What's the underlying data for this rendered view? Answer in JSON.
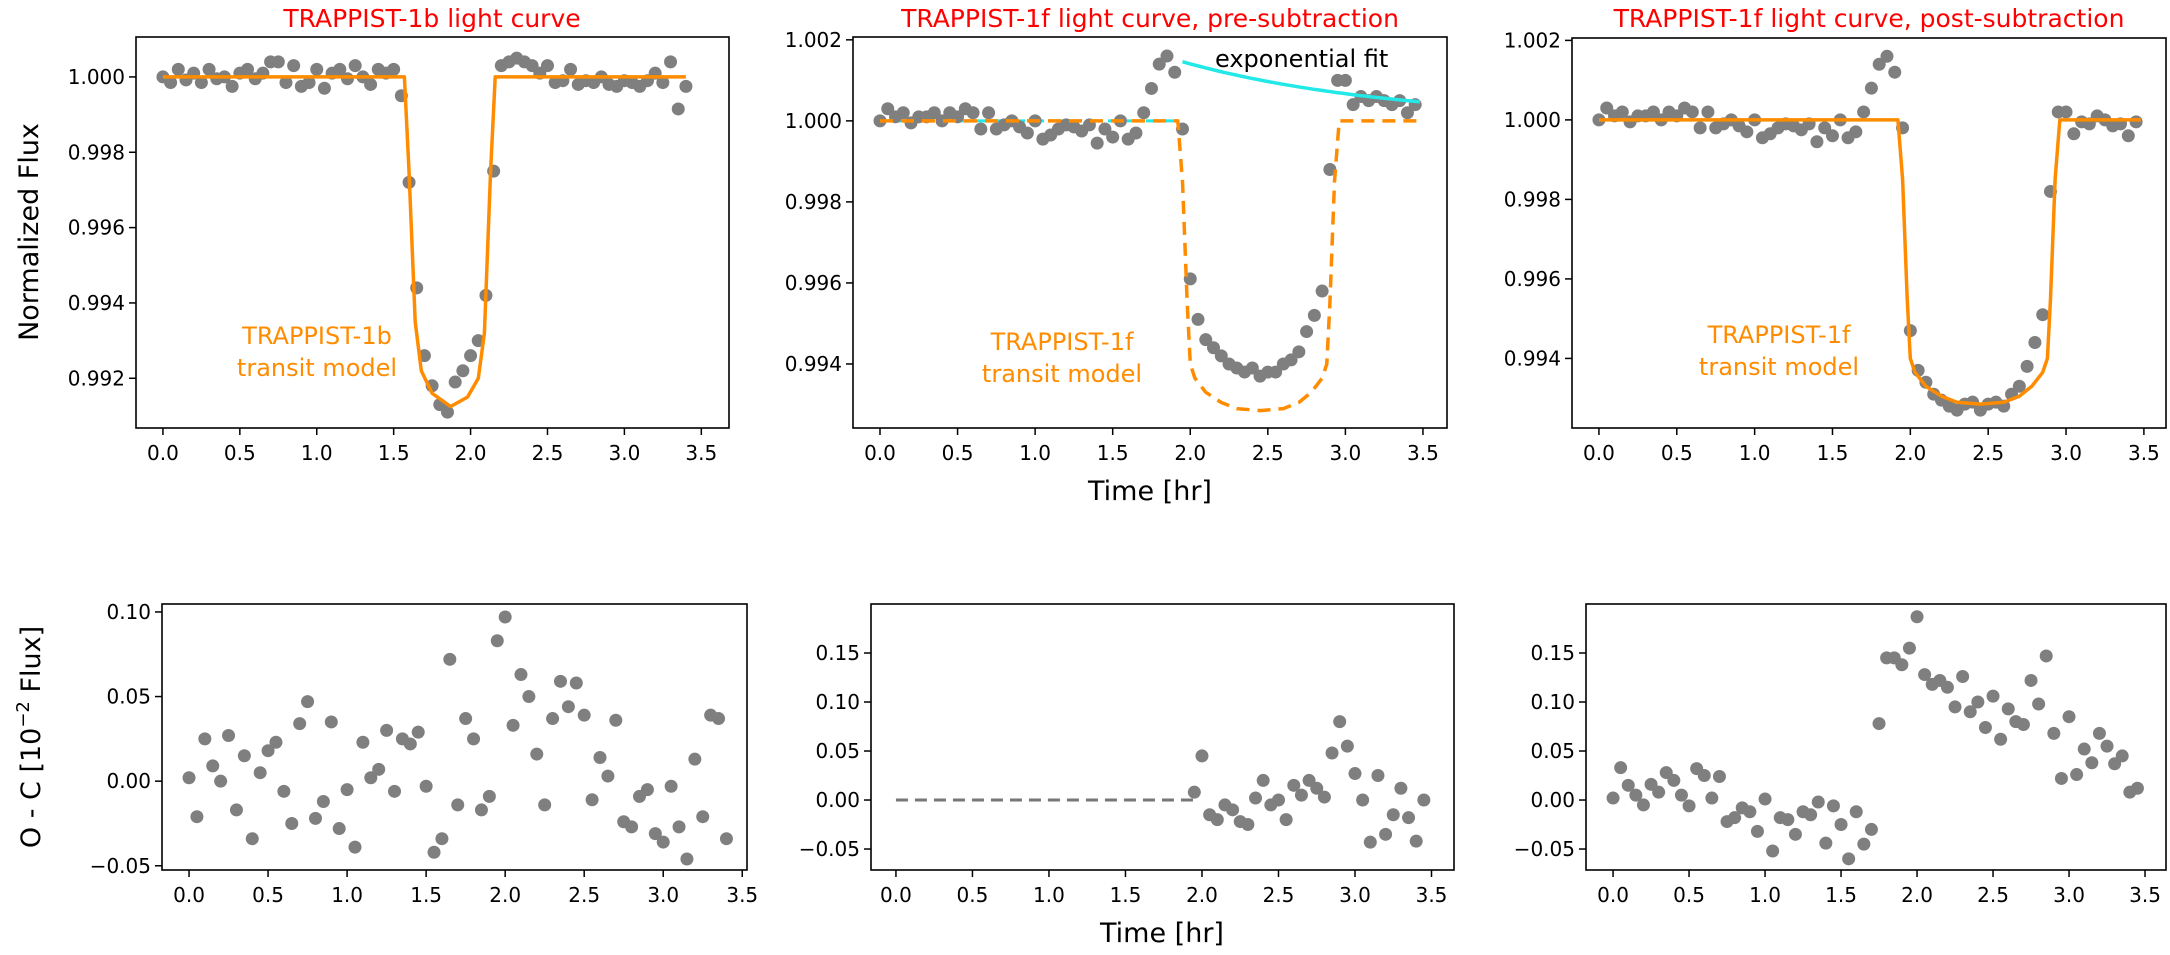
{
  "colors": {
    "points": "#7f7f7f",
    "model": "#ff8c00",
    "fit": "#22e8e8",
    "title": "#ff0000",
    "residual_zero": "#777777"
  },
  "labels": {
    "ylabel_top": "Normalized Flux",
    "ylabel_bottom_pre": "O - C [10",
    "ylabel_bottom_sup": "−2",
    "ylabel_bottom_post": " Flux]",
    "xlabel_top": "Time [hr]",
    "xlabel_bottom": "Time [hr]"
  },
  "chart_data": [
    {
      "id": "b_lc",
      "type": "scatter+line",
      "title": "TRAPPIST-1b light curve",
      "annotation": [
        "TRAPPIST-1b",
        "transit model"
      ],
      "xlim": [
        -0.175,
        3.68
      ],
      "ylim": [
        0.99068,
        1.00106
      ],
      "xticks": [
        0,
        0.5,
        1,
        1.5,
        2,
        2.5,
        3,
        3.5
      ],
      "xtick_labels": [
        "0.0",
        "0.5",
        "1.0",
        "1.5",
        "2.0",
        "2.5",
        "3.0",
        "3.5"
      ],
      "yticks": [
        0.992,
        0.994,
        0.996,
        0.998,
        1.0
      ],
      "ytick_labels": [
        "0.992",
        "0.994",
        "0.996",
        "0.998",
        "1.000"
      ],
      "t_start": 0,
      "t_step": 0.05,
      "y": [
        1.0,
        0.99985,
        1.0002,
        0.99992,
        1.0001,
        0.99985,
        1.0002,
        0.99995,
        1.0,
        0.99975,
        1.0001,
        1.0002,
        0.99995,
        1.0001,
        1.0004,
        1.0004,
        0.99985,
        1.0003,
        0.99975,
        0.99985,
        1.0002,
        0.9997,
        1.0001,
        1.0002,
        0.99995,
        1.0003,
        1.0,
        0.9998,
        1.0002,
        1.0001,
        1.0002,
        0.9995,
        0.9972,
        0.9944,
        0.9926,
        0.9918,
        0.9913,
        0.9911,
        0.9919,
        0.9922,
        0.9926,
        0.993,
        0.9942,
        0.9975,
        1.0003,
        1.0004,
        1.0005,
        1.0004,
        1.0003,
        1.0001,
        1.0003,
        0.99985,
        0.9999,
        1.0002,
        0.9998,
        0.9999,
        0.99985,
        1.0,
        0.9998,
        0.99975,
        0.9999,
        0.99985,
        0.99975,
        0.9999,
        1.0001,
        0.99985,
        1.0004,
        0.99915,
        0.99975
      ],
      "model": {
        "style": "solid",
        "points": [
          [
            0,
            1.0
          ],
          [
            1.57,
            1.0
          ],
          [
            1.6,
            0.9975
          ],
          [
            1.64,
            0.9935
          ],
          [
            1.68,
            0.9922
          ],
          [
            1.75,
            0.9916
          ],
          [
            1.87,
            0.99125
          ],
          [
            1.98,
            0.9915
          ],
          [
            2.05,
            0.992
          ],
          [
            2.09,
            0.9932
          ],
          [
            2.13,
            0.9975
          ],
          [
            2.16,
            1.0
          ],
          [
            3.4,
            1.0
          ]
        ]
      }
    },
    {
      "id": "f_pre",
      "type": "scatter+line",
      "title": "TRAPPIST-1f light curve, pre-subtraction",
      "annotation": [
        "TRAPPIST-1f",
        "transit model"
      ],
      "fit_label": "exponential fit",
      "xlim": [
        -0.174,
        3.655
      ],
      "ylim": [
        0.99242,
        1.00207
      ],
      "xticks": [
        0,
        0.5,
        1,
        1.5,
        2,
        2.5,
        3,
        3.5
      ],
      "xtick_labels": [
        "0.0",
        "0.5",
        "1.0",
        "1.5",
        "2.0",
        "2.5",
        "3.0",
        "3.5"
      ],
      "yticks": [
        0.994,
        0.996,
        0.998,
        1.0,
        1.002
      ],
      "ytick_labels": [
        "0.994",
        "0.996",
        "0.998",
        "1.000",
        "1.002"
      ],
      "t_start": 0,
      "t_step": 0.05,
      "y": [
        1.0,
        1.0003,
        1.0001,
        1.0002,
        0.99995,
        1.0001,
        1.0001,
        1.0002,
        1.0,
        1.0002,
        1.0001,
        1.0003,
        1.0002,
        0.9998,
        1.0002,
        0.9998,
        0.9999,
        1.0,
        0.99985,
        0.9997,
        1.0,
        0.99955,
        0.99965,
        0.9998,
        0.9999,
        0.99985,
        0.99975,
        0.9999,
        0.99945,
        0.9998,
        0.9996,
        1.0,
        0.99955,
        0.9997,
        1.0002,
        1.0008,
        1.0014,
        1.0016,
        1.0012,
        0.9998,
        0.9961,
        0.9951,
        0.9946,
        0.9944,
        0.9942,
        0.994,
        0.9939,
        0.9938,
        0.9939,
        0.9937,
        0.9938,
        0.9938,
        0.994,
        0.9941,
        0.9943,
        0.9948,
        0.9952,
        0.9958,
        0.9988,
        1.001,
        1.001,
        1.0004,
        1.0006,
        1.0005,
        1.0006,
        1.0005,
        1.0004,
        1.0005,
        1.0002,
        1.0004
      ],
      "model": {
        "style": "dashed",
        "points": [
          [
            0,
            1.0
          ],
          [
            1.92,
            1.0
          ],
          [
            1.95,
            0.9985
          ],
          [
            1.98,
            0.9955
          ],
          [
            2.0,
            0.994
          ],
          [
            2.03,
            0.99365
          ],
          [
            2.1,
            0.9933
          ],
          [
            2.2,
            0.99305
          ],
          [
            2.3,
            0.9929
          ],
          [
            2.45,
            0.99285
          ],
          [
            2.6,
            0.9929
          ],
          [
            2.7,
            0.99305
          ],
          [
            2.78,
            0.9933
          ],
          [
            2.85,
            0.99365
          ],
          [
            2.88,
            0.994
          ],
          [
            2.9,
            0.9955
          ],
          [
            2.93,
            0.9985
          ],
          [
            2.96,
            1.0
          ],
          [
            3.48,
            1.0
          ]
        ]
      },
      "baseline": {
        "style": "dashed",
        "value": 1.0,
        "t_range": [
          0,
          1.93
        ]
      },
      "exp_fit": {
        "t_start": 1.95,
        "t_end": 3.48,
        "offset": 1.0,
        "amplitude": 0.00146,
        "tau": 1.35
      }
    },
    {
      "id": "f_post",
      "type": "scatter+line",
      "title": "TRAPPIST-1f light curve, post-subtraction",
      "annotation": [
        "TRAPPIST-1f",
        "transit model"
      ],
      "xlim": [
        -0.173,
        3.642
      ],
      "ylim": [
        0.99225,
        1.00206
      ],
      "xticks": [
        0,
        0.5,
        1,
        1.5,
        2,
        2.5,
        3,
        3.5
      ],
      "xtick_labels": [
        "0.0",
        "0.5",
        "1.0",
        "1.5",
        "2.0",
        "2.5",
        "3.0",
        "3.5"
      ],
      "yticks": [
        0.994,
        0.996,
        0.998,
        1.0,
        1.002
      ],
      "ytick_labels": [
        "0.994",
        "0.996",
        "0.998",
        "1.000",
        "1.002"
      ],
      "t_start": 0,
      "t_step": 0.05,
      "y": [
        1.0,
        1.0003,
        1.0001,
        1.0002,
        0.99995,
        1.0001,
        1.0001,
        1.0002,
        1.0,
        1.0002,
        1.0001,
        1.0003,
        1.0002,
        0.9998,
        1.0002,
        0.9998,
        0.9999,
        1.0,
        0.99985,
        0.9997,
        1.0,
        0.99955,
        0.99965,
        0.9998,
        0.9999,
        0.99985,
        0.99975,
        0.9999,
        0.99945,
        0.9998,
        0.9996,
        1.0,
        0.99955,
        0.9997,
        1.0002,
        1.0008,
        1.0014,
        1.0016,
        1.0012,
        0.9998,
        0.9947,
        0.9937,
        0.9934,
        0.9931,
        0.99295,
        0.9928,
        0.9927,
        0.99285,
        0.9929,
        0.9927,
        0.99285,
        0.9929,
        0.9928,
        0.9931,
        0.9933,
        0.9938,
        0.9944,
        0.9951,
        0.9982,
        1.0002,
        1.0002,
        0.99965,
        0.99995,
        0.9999,
        1.0001,
        1.0,
        0.99985,
        0.9999,
        0.9996,
        0.99995
      ],
      "model": {
        "style": "solid",
        "points": [
          [
            0,
            1.0
          ],
          [
            1.92,
            1.0
          ],
          [
            1.95,
            0.9985
          ],
          [
            1.98,
            0.9955
          ],
          [
            2.0,
            0.994
          ],
          [
            2.03,
            0.99365
          ],
          [
            2.1,
            0.9933
          ],
          [
            2.2,
            0.99305
          ],
          [
            2.3,
            0.9929
          ],
          [
            2.45,
            0.99285
          ],
          [
            2.6,
            0.9929
          ],
          [
            2.7,
            0.99305
          ],
          [
            2.78,
            0.9933
          ],
          [
            2.85,
            0.99365
          ],
          [
            2.88,
            0.994
          ],
          [
            2.9,
            0.9955
          ],
          [
            2.93,
            0.9985
          ],
          [
            2.96,
            1.0
          ],
          [
            3.48,
            1.0
          ]
        ]
      }
    },
    {
      "id": "b_res",
      "type": "scatter",
      "xlim": [
        -0.171,
        3.53
      ],
      "ylim": [
        -0.0525,
        0.1047
      ],
      "xticks": [
        0,
        0.5,
        1,
        1.5,
        2,
        2.5,
        3,
        3.5
      ],
      "xtick_labels": [
        "0.0",
        "0.5",
        "1.0",
        "1.5",
        "2.0",
        "2.5",
        "3.0",
        "3.5"
      ],
      "yticks": [
        -0.05,
        0,
        0.05,
        0.1
      ],
      "ytick_labels": [
        "−0.05",
        "0.00",
        "0.05",
        "0.10"
      ],
      "t_start": 0,
      "t_step": 0.05,
      "y": [
        0.002,
        -0.021,
        0.025,
        0.009,
        0.0,
        0.027,
        -0.017,
        0.015,
        -0.034,
        0.005,
        0.018,
        0.023,
        -0.006,
        -0.025,
        0.034,
        0.047,
        -0.022,
        -0.012,
        0.035,
        -0.028,
        -0.005,
        -0.039,
        0.023,
        0.002,
        0.007,
        0.03,
        -0.006,
        0.025,
        0.022,
        0.029,
        -0.003,
        -0.042,
        -0.034,
        0.072,
        -0.014,
        0.037,
        0.025,
        -0.017,
        -0.009,
        0.083,
        0.097,
        0.033,
        0.063,
        0.05,
        0.016,
        -0.014,
        0.037,
        0.059,
        0.044,
        0.058,
        0.039,
        -0.011,
        0.014,
        0.003,
        0.036,
        -0.024,
        -0.027,
        -0.009,
        -0.005,
        -0.031,
        -0.036,
        -0.003,
        -0.027,
        -0.046,
        0.013,
        -0.021,
        0.039,
        0.037,
        -0.034
      ]
    },
    {
      "id": "f_pre_res",
      "type": "scatter",
      "xlim": [
        -0.163,
        3.647
      ],
      "ylim": [
        -0.0714,
        0.2
      ],
      "xticks": [
        0,
        0.5,
        1,
        1.5,
        2,
        2.5,
        3,
        3.5
      ],
      "xtick_labels": [
        "0.0",
        "0.5",
        "1.0",
        "1.5",
        "2.0",
        "2.5",
        "3.0",
        "3.5"
      ],
      "yticks": [
        -0.05,
        0,
        0.05,
        0.1,
        0.15
      ],
      "ytick_labels": [
        "−0.05",
        "0.00",
        "0.05",
        "0.10",
        "0.15"
      ],
      "t_start": 1.95,
      "t_step": 0.05,
      "y": [
        0.008,
        0.045,
        -0.015,
        -0.02,
        -0.005,
        -0.01,
        -0.022,
        -0.025,
        0.002,
        0.02,
        -0.005,
        0.0,
        -0.02,
        0.015,
        0.005,
        0.02,
        0.012,
        0.003,
        0.048,
        0.08,
        0.055,
        0.027,
        0.0,
        -0.043,
        0.025,
        -0.035,
        -0.015,
        0.012,
        -0.018,
        -0.042,
        0.0
      ],
      "baseline": {
        "style": "dashed",
        "value": 0.0,
        "t_range": [
          0,
          1.95
        ]
      }
    },
    {
      "id": "f_post_res",
      "type": "scatter",
      "xlim": [
        -0.178,
        3.638
      ],
      "ylim": [
        -0.0714,
        0.2
      ],
      "xticks": [
        0,
        0.5,
        1,
        1.5,
        2,
        2.5,
        3,
        3.5
      ],
      "xtick_labels": [
        "0.0",
        "0.5",
        "1.0",
        "1.5",
        "2.0",
        "2.5",
        "3.0",
        "3.5"
      ],
      "yticks": [
        -0.05,
        0,
        0.05,
        0.1,
        0.15
      ],
      "ytick_labels": [
        "−0.05",
        "0.00",
        "0.05",
        "0.10",
        "0.15"
      ],
      "t_start": 0,
      "t_step": 0.05,
      "y": [
        0.002,
        0.033,
        0.015,
        0.005,
        -0.005,
        0.016,
        0.008,
        0.028,
        0.02,
        0.005,
        -0.006,
        0.032,
        0.025,
        0.002,
        0.024,
        -0.022,
        -0.018,
        -0.008,
        -0.012,
        -0.032,
        0.001,
        -0.052,
        -0.018,
        -0.02,
        -0.035,
        -0.012,
        -0.015,
        -0.002,
        -0.044,
        -0.006,
        -0.025,
        -0.06,
        -0.012,
        -0.045,
        -0.03,
        0.078,
        0.145,
        0.145,
        0.138,
        0.155,
        0.187,
        0.128,
        0.118,
        0.122,
        0.115,
        0.095,
        0.126,
        0.09,
        0.1,
        0.074,
        0.106,
        0.062,
        0.093,
        0.08,
        0.077,
        0.122,
        0.098,
        0.147,
        0.068,
        0.022,
        0.085,
        0.026,
        0.052,
        0.038,
        0.068,
        0.055,
        0.037,
        0.045,
        0.008,
        0.012
      ]
    }
  ]
}
